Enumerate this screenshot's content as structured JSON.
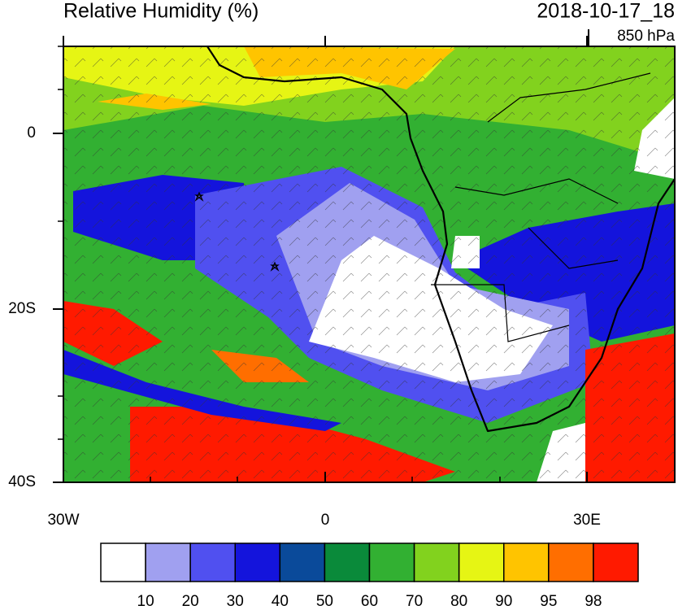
{
  "title": "Relative Humidity (%)",
  "valid_time": "2018-10-17_18",
  "level": "850 hPa",
  "x_axis": {
    "labels": [
      "30W",
      "0",
      "30E"
    ]
  },
  "y_axis": {
    "labels": [
      "0",
      "20S",
      "40S"
    ]
  },
  "colorbar": {
    "colors": [
      "#ffffff",
      "#a0a0f0",
      "#5050f0",
      "#1414dc",
      "#0a4a9a",
      "#0a8a3a",
      "#32b032",
      "#82d21e",
      "#e6f514",
      "#ffc400",
      "#ff6e00",
      "#ff1a00"
    ],
    "labels": [
      "10",
      "20",
      "30",
      "40",
      "50",
      "60",
      "70",
      "80",
      "90",
      "95",
      "98"
    ]
  }
}
